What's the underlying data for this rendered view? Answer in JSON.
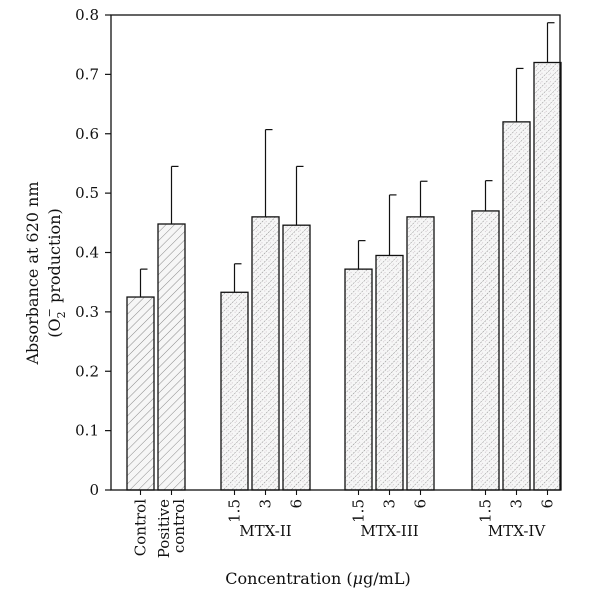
{
  "chart_data": {
    "type": "bar",
    "ylabel": "Absorbance at 620 nm",
    "ylabel_sub": "(O2 production)",
    "ylabel_sub_parts": {
      "open": "(O",
      "sub": "2",
      "sup": "−",
      "rest": " production)"
    },
    "xlabel": "Concentration (μg/mL)",
    "xlabel_parts": {
      "before": "Concentration (",
      "mu": "μ",
      "after": "g/mL)"
    },
    "ylim": [
      0,
      0.8
    ],
    "yticks": [
      "0",
      "0.1",
      "0.2",
      "0.3",
      "0.4",
      "0.5",
      "0.6",
      "0.7",
      "0.8"
    ],
    "grid": false,
    "legend": "none",
    "groups": [
      {
        "name": "",
        "bars": [
          {
            "label": "Control",
            "value": 0.325,
            "error": 0.047
          },
          {
            "label": "Positive control",
            "label_lines": [
              "Positive",
              "control"
            ],
            "value": 0.448,
            "error": 0.097
          }
        ]
      },
      {
        "name": "MTX-II",
        "bars": [
          {
            "label": "1.5",
            "value": 0.333,
            "error": 0.048
          },
          {
            "label": "3",
            "value": 0.46,
            "error": 0.147
          },
          {
            "label": "6",
            "value": 0.446,
            "error": 0.099
          }
        ]
      },
      {
        "name": "MTX-III",
        "bars": [
          {
            "label": "1.5",
            "value": 0.372,
            "error": 0.048
          },
          {
            "label": "3",
            "value": 0.395,
            "error": 0.102
          },
          {
            "label": "6",
            "value": 0.46,
            "error": 0.06
          }
        ]
      },
      {
        "name": "MTX-IV",
        "bars": [
          {
            "label": "1.5",
            "value": 0.47,
            "error": 0.051
          },
          {
            "label": "3",
            "value": 0.62,
            "error": 0.09
          },
          {
            "label": "6",
            "value": 0.72,
            "error": 0.067
          }
        ]
      }
    ],
    "colors": {
      "axis": "#111111",
      "bar_fill": "#f6f6f6",
      "hatch": "#8a8a8a",
      "hatch_speckle": "#b9a9b4"
    }
  }
}
